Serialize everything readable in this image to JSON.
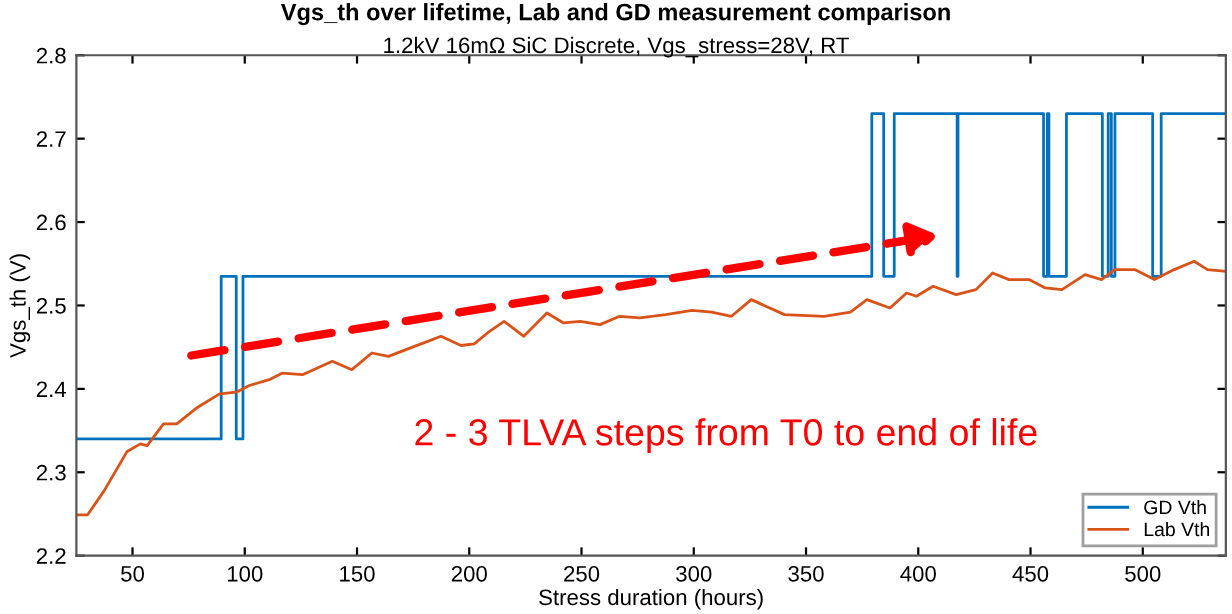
{
  "chart_data": {
    "type": "step",
    "title": "Vgs_th over lifetime, Lab and GD measurement comparison",
    "subtitle": "1.2kV 16mΩ SiC Discrete, Vgs_stress=28V, RT",
    "xlabel": "Stress duration (hours)",
    "ylabel": "Vgs_th (V)",
    "xlim": [
      25,
      537
    ],
    "ylim": [
      2.2,
      2.8
    ],
    "xticks": [
      50,
      100,
      150,
      200,
      250,
      300,
      350,
      400,
      450,
      500
    ],
    "yticks": [
      2.2,
      2.3,
      2.4,
      2.5,
      2.6,
      2.7,
      2.8
    ],
    "grid": false,
    "legend": "bottom right",
    "annotations": [
      "2 - 3 TLVA steps from T0 to end of life"
    ],
    "series": [
      {
        "name": "GD Vth",
        "color": "#0072bd",
        "x": [
          25,
          89.5,
          96.2,
          99.2,
          379.3,
          384.6,
          389.3,
          417.3,
          417.7,
          455.8,
          457.5,
          458.2,
          466,
          482,
          484.6,
          486,
          487.6,
          504.4,
          508.2,
          537
        ],
        "values": [
          2.34,
          2.535,
          2.34,
          2.535,
          2.73,
          2.535,
          2.73,
          2.535,
          2.73,
          2.535,
          2.73,
          2.535,
          2.73,
          2.535,
          2.73,
          2.535,
          2.73,
          2.535,
          2.73,
          2.73
        ]
      },
      {
        "name": "Lab Vth",
        "type": "line",
        "color": "#d95319",
        "x": [
          25,
          30,
          37.4,
          47.6,
          53.5,
          56.5,
          63.8,
          69.7,
          78.5,
          88.8,
          96.2,
          102,
          110.9,
          116.8,
          125.7,
          139,
          147.7,
          156.6,
          164,
          175.6,
          181.5,
          187.4,
          196.3,
          202.2,
          208.1,
          215.5,
          224.3,
          228.7,
          234.6,
          242,
          249.4,
          258.2,
          267,
          275.9,
          287.5,
          299.2,
          308,
          316.8,
          325.6,
          340.4,
          358,
          369.8,
          377.1,
          387.4,
          394.8,
          399.2,
          406.6,
          416.9,
          425.7,
          433.1,
          440.4,
          449.3,
          456.6,
          464,
          474.3,
          481.6,
          487.5,
          496.4,
          505.2,
          514,
          522.9,
          528.8,
          537
        ],
        "values": [
          2.249,
          2.249,
          2.278,
          2.325,
          2.334,
          2.332,
          2.358,
          2.358,
          2.377,
          2.394,
          2.396,
          2.404,
          2.411,
          2.419,
          2.417,
          2.433,
          2.423,
          2.443,
          2.439,
          2.451,
          2.457,
          2.463,
          2.452,
          2.454,
          2.467,
          2.481,
          2.463,
          2.475,
          2.491,
          2.479,
          2.481,
          2.477,
          2.487,
          2.485,
          2.489,
          2.494,
          2.492,
          2.487,
          2.507,
          2.489,
          2.487,
          2.492,
          2.507,
          2.497,
          2.515,
          2.511,
          2.523,
          2.513,
          2.519,
          2.539,
          2.531,
          2.531,
          2.521,
          2.519,
          2.537,
          2.531,
          2.543,
          2.543,
          2.531,
          2.543,
          2.553,
          2.543,
          2.541
        ]
      }
    ]
  }
}
